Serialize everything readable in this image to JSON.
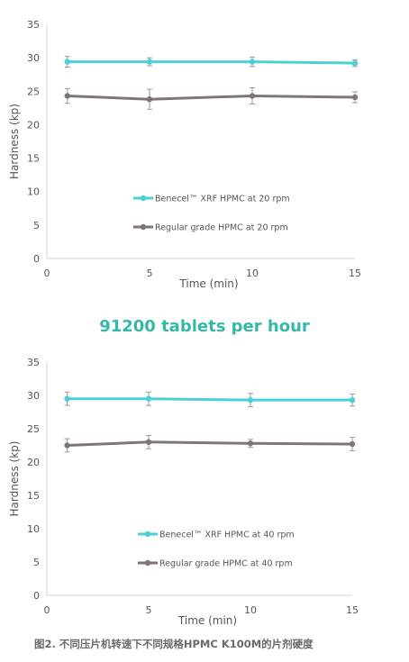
{
  "chart_data": [
    {
      "type": "line",
      "title": "",
      "xlabel": "Time (min)",
      "ylabel": "Hardness (kp)",
      "xlim": [
        0,
        15
      ],
      "ylim": [
        0,
        35
      ],
      "xticks": [
        0,
        5,
        10,
        15
      ],
      "yticks": [
        0,
        5,
        10,
        15,
        20,
        25,
        30,
        35
      ],
      "grid": false,
      "legend_position": "center",
      "series": [
        {
          "name": "Benecel™ XRF HPMC at 20 rpm",
          "color": "#4dcfd8",
          "x": [
            1,
            5,
            10,
            15
          ],
          "y": [
            29.4,
            29.4,
            29.4,
            29.2
          ],
          "err": [
            0.8,
            0.6,
            0.7,
            0.5
          ]
        },
        {
          "name": "Regular grade HPMC at 20 rpm",
          "color": "#7f7673",
          "x": [
            1,
            5,
            10,
            15
          ],
          "y": [
            24.3,
            23.8,
            24.3,
            24.1
          ],
          "err": [
            1.1,
            1.5,
            1.2,
            0.8
          ]
        }
      ]
    },
    {
      "type": "line",
      "title": "",
      "xlabel": "Time (min)",
      "ylabel": "Hardness (kp)",
      "xlim": [
        0,
        15
      ],
      "ylim": [
        0,
        35
      ],
      "xticks": [
        0,
        5,
        10,
        15
      ],
      "yticks": [
        0,
        5,
        10,
        15,
        20,
        25,
        30,
        35
      ],
      "grid": false,
      "legend_position": "center",
      "series": [
        {
          "name": "Benecel™ XRF HPMC at 40 rpm",
          "color": "#4dcfd8",
          "x": [
            1,
            5,
            10,
            15
          ],
          "y": [
            29.5,
            29.5,
            29.3,
            29.3
          ],
          "err": [
            1.0,
            1.0,
            1.0,
            0.9
          ]
        },
        {
          "name": "Regular grade HPMC at 40 rpm",
          "color": "#7f7673",
          "x": [
            1,
            5,
            10,
            15
          ],
          "y": [
            22.5,
            23.0,
            22.8,
            22.7
          ],
          "err": [
            1.0,
            1.0,
            0.6,
            1.0
          ]
        }
      ]
    }
  ],
  "middle_title": "91200 tablets per hour",
  "caption": "图2. 不同压片机转速下不同规格HPMC K100M的片剂硬度"
}
